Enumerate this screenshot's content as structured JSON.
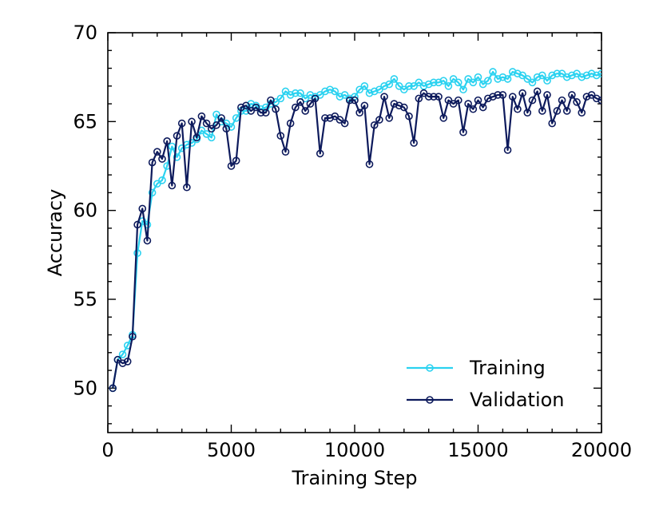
{
  "chart_data": {
    "type": "line",
    "xlabel": "Training Step",
    "ylabel": "Accuracy",
    "xlim": [
      0,
      20000
    ],
    "ylim": [
      47.5,
      70
    ],
    "x_ticks": [
      0,
      5000,
      10000,
      15000,
      20000
    ],
    "y_ticks": [
      50,
      55,
      60,
      65,
      70
    ],
    "grid": false,
    "legend_placement": "lower-right",
    "series": [
      {
        "name": "Training",
        "color": "#2bd2f0",
        "marker": "circle-open",
        "x": [
          200,
          400,
          600,
          800,
          1000,
          1200,
          1400,
          1600,
          1800,
          2000,
          2200,
          2400,
          2600,
          2800,
          3000,
          3200,
          3400,
          3600,
          3800,
          4000,
          4200,
          4400,
          4600,
          4800,
          5000,
          5200,
          5400,
          5600,
          5800,
          6000,
          6200,
          6400,
          6600,
          6800,
          7000,
          7200,
          7400,
          7600,
          7800,
          8000,
          8200,
          8400,
          8600,
          8800,
          9000,
          9200,
          9400,
          9600,
          9800,
          10000,
          10200,
          10400,
          10600,
          10800,
          11000,
          11200,
          11400,
          11600,
          11800,
          12000,
          12200,
          12400,
          12600,
          12800,
          13000,
          13200,
          13400,
          13600,
          13800,
          14000,
          14200,
          14400,
          14600,
          14800,
          15000,
          15200,
          15400,
          15600,
          15800,
          16000,
          16200,
          16400,
          16600,
          16800,
          17000,
          17200,
          17400,
          17600,
          17800,
          18000,
          18200,
          18400,
          18600,
          18800,
          19000,
          19200,
          19400,
          19600,
          19800,
          20000
        ],
        "values": [
          50.0,
          51.6,
          51.9,
          52.4,
          53.0,
          57.6,
          59.4,
          59.2,
          61.0,
          61.5,
          61.7,
          62.5,
          63.6,
          63.0,
          63.5,
          63.7,
          63.8,
          64.0,
          64.5,
          64.3,
          64.1,
          65.4,
          65.0,
          64.9,
          64.7,
          65.2,
          65.6,
          65.6,
          66.0,
          65.9,
          65.7,
          65.8,
          66.0,
          66.1,
          66.3,
          66.7,
          66.5,
          66.6,
          66.6,
          66.3,
          66.5,
          66.4,
          66.5,
          66.7,
          66.8,
          66.7,
          66.4,
          66.5,
          66.3,
          66.4,
          66.8,
          67.0,
          66.6,
          66.7,
          66.8,
          67.0,
          67.1,
          67.4,
          67.0,
          66.8,
          67.0,
          67.0,
          67.2,
          67.0,
          67.1,
          67.2,
          67.2,
          67.3,
          67.0,
          67.4,
          67.2,
          66.8,
          67.4,
          67.2,
          67.5,
          67.1,
          67.3,
          67.8,
          67.4,
          67.5,
          67.4,
          67.8,
          67.7,
          67.6,
          67.4,
          67.2,
          67.5,
          67.6,
          67.3,
          67.6,
          67.7,
          67.7,
          67.5,
          67.6,
          67.7,
          67.5,
          67.6,
          67.7,
          67.6,
          67.7
        ]
      },
      {
        "name": "Validation",
        "color": "#0d1a5c",
        "marker": "circle-open",
        "x": [
          200,
          400,
          600,
          800,
          1000,
          1200,
          1400,
          1600,
          1800,
          2000,
          2200,
          2400,
          2600,
          2800,
          3000,
          3200,
          3400,
          3600,
          3800,
          4000,
          4200,
          4400,
          4600,
          4800,
          5000,
          5200,
          5400,
          5600,
          5800,
          6000,
          6200,
          6400,
          6600,
          6800,
          7000,
          7200,
          7400,
          7600,
          7800,
          8000,
          8200,
          8400,
          8600,
          8800,
          9000,
          9200,
          9400,
          9600,
          9800,
          10000,
          10200,
          10400,
          10600,
          10800,
          11000,
          11200,
          11400,
          11600,
          11800,
          12000,
          12200,
          12400,
          12600,
          12800,
          13000,
          13200,
          13400,
          13600,
          13800,
          14000,
          14200,
          14400,
          14600,
          14800,
          15000,
          15200,
          15400,
          15600,
          15800,
          16000,
          16200,
          16400,
          16600,
          16800,
          17000,
          17200,
          17400,
          17600,
          17800,
          18000,
          18200,
          18400,
          18600,
          18800,
          19000,
          19200,
          19400,
          19600,
          19800,
          20000
        ],
        "values": [
          50.0,
          51.6,
          51.4,
          51.5,
          52.9,
          59.2,
          60.1,
          58.3,
          62.7,
          63.3,
          62.9,
          63.9,
          61.4,
          64.2,
          64.9,
          61.3,
          65.0,
          64.1,
          65.3,
          64.9,
          64.6,
          64.8,
          65.2,
          64.6,
          62.5,
          62.8,
          65.8,
          65.9,
          65.6,
          65.8,
          65.5,
          65.5,
          66.2,
          65.7,
          64.2,
          63.3,
          64.9,
          65.8,
          66.1,
          65.6,
          66.0,
          66.3,
          63.2,
          65.2,
          65.2,
          65.3,
          65.1,
          64.9,
          66.2,
          66.2,
          65.5,
          65.9,
          62.6,
          64.8,
          65.1,
          66.4,
          65.2,
          66.0,
          65.9,
          65.8,
          65.3,
          63.8,
          66.3,
          66.6,
          66.4,
          66.4,
          66.4,
          65.2,
          66.2,
          66.0,
          66.2,
          64.4,
          66.0,
          65.7,
          66.2,
          65.8,
          66.3,
          66.4,
          66.5,
          66.5,
          63.4,
          66.4,
          65.7,
          66.6,
          65.5,
          66.2,
          66.7,
          65.6,
          66.5,
          64.9,
          65.6,
          66.2,
          65.6,
          66.5,
          66.1,
          65.5,
          66.4,
          66.5,
          66.3,
          66.2
        ]
      }
    ]
  }
}
